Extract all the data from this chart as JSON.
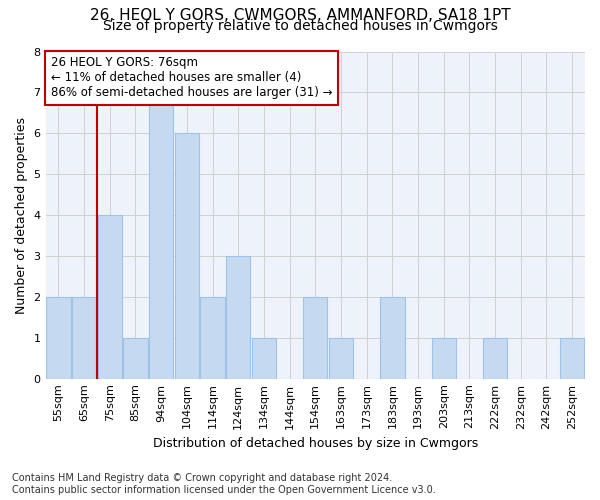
{
  "title_line1": "26, HEOL Y GORS, CWMGORS, AMMANFORD, SA18 1PT",
  "title_line2": "Size of property relative to detached houses in Cwmgors",
  "xlabel": "Distribution of detached houses by size in Cwmgors",
  "ylabel": "Number of detached properties",
  "categories": [
    "55sqm",
    "65sqm",
    "75sqm",
    "85sqm",
    "94sqm",
    "104sqm",
    "114sqm",
    "124sqm",
    "134sqm",
    "144sqm",
    "154sqm",
    "163sqm",
    "173sqm",
    "183sqm",
    "193sqm",
    "203sqm",
    "213sqm",
    "222sqm",
    "232sqm",
    "242sqm",
    "252sqm"
  ],
  "values": [
    2,
    2,
    4,
    1,
    7,
    6,
    2,
    3,
    1,
    0,
    2,
    1,
    0,
    2,
    0,
    1,
    0,
    1,
    0,
    0,
    1
  ],
  "bar_color": "#c5d9f1",
  "bar_edgecolor": "#9dc3e6",
  "highlight_index": 2,
  "highlight_line_color": "#c00000",
  "annotation_line1": "26 HEOL Y GORS: 76sqm",
  "annotation_line2": "← 11% of detached houses are smaller (4)",
  "annotation_line3": "86% of semi-detached houses are larger (31) →",
  "annotation_box_color": "#c00000",
  "annotation_box_facecolor": "white",
  "ylim": [
    0,
    8
  ],
  "yticks": [
    0,
    1,
    2,
    3,
    4,
    5,
    6,
    7,
    8
  ],
  "grid_color": "#d0d0d0",
  "background_color": "#eef3fb",
  "footer_text": "Contains HM Land Registry data © Crown copyright and database right 2024.\nContains public sector information licensed under the Open Government Licence v3.0.",
  "title_fontsize": 11,
  "subtitle_fontsize": 10,
  "axis_label_fontsize": 9,
  "tick_fontsize": 8,
  "annotation_fontsize": 8.5
}
